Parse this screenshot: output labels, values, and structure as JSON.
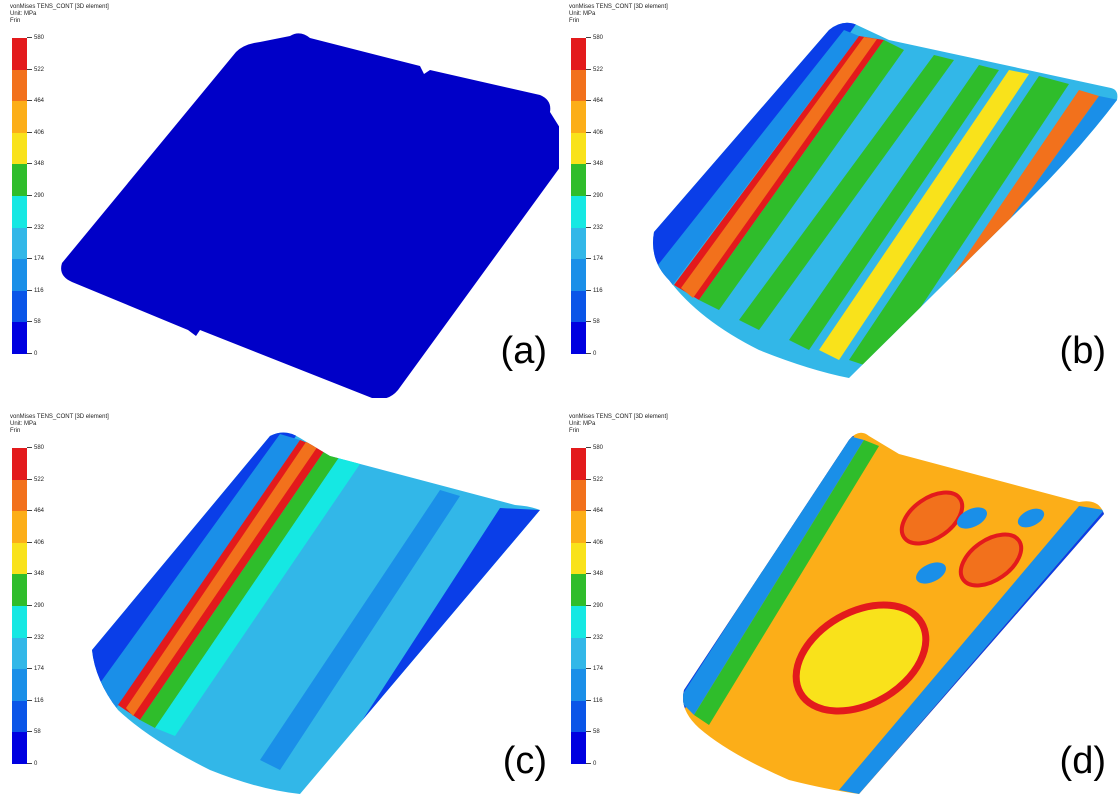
{
  "legend": {
    "title": "vonMises TENS_CONT [3D element]",
    "unit": "Unit: MPa",
    "mode": "Frin",
    "ticks": [
      "580",
      "522",
      "464",
      "406",
      "348",
      "290",
      "232",
      "174",
      "116",
      "58",
      "0"
    ],
    "colors": [
      "#e31a1c",
      "#f2711c",
      "#fcae18",
      "#f9e21b",
      "#2fbd2b",
      "#15e8e3",
      "#32b7e8",
      "#1a8fe8",
      "#0a55e8",
      "#0000e0"
    ]
  },
  "panels": [
    {
      "label": "(a)"
    },
    {
      "label": "(b)"
    },
    {
      "label": "(c)"
    },
    {
      "label": "(d)"
    }
  ]
}
